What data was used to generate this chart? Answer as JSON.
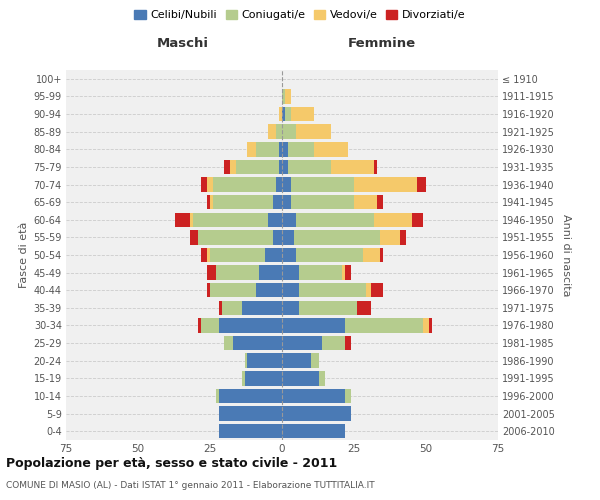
{
  "age_groups": [
    "0-4",
    "5-9",
    "10-14",
    "15-19",
    "20-24",
    "25-29",
    "30-34",
    "35-39",
    "40-44",
    "45-49",
    "50-54",
    "55-59",
    "60-64",
    "65-69",
    "70-74",
    "75-79",
    "80-84",
    "85-89",
    "90-94",
    "95-99",
    "100+"
  ],
  "birth_years": [
    "2006-2010",
    "2001-2005",
    "1996-2000",
    "1991-1995",
    "1986-1990",
    "1981-1985",
    "1976-1980",
    "1971-1975",
    "1966-1970",
    "1961-1965",
    "1956-1960",
    "1951-1955",
    "1946-1950",
    "1941-1945",
    "1936-1940",
    "1931-1935",
    "1926-1930",
    "1921-1925",
    "1916-1920",
    "1911-1915",
    "≤ 1910"
  ],
  "males": {
    "celibi": [
      22,
      22,
      22,
      13,
      12,
      17,
      22,
      14,
      9,
      8,
      6,
      3,
      5,
      3,
      2,
      1,
      1,
      0,
      0,
      0,
      0
    ],
    "coniugati": [
      0,
      0,
      1,
      1,
      1,
      3,
      6,
      7,
      16,
      15,
      19,
      26,
      26,
      21,
      22,
      15,
      8,
      2,
      0,
      0,
      0
    ],
    "vedovi": [
      0,
      0,
      0,
      0,
      0,
      0,
      0,
      0,
      0,
      0,
      1,
      0,
      1,
      1,
      2,
      2,
      3,
      3,
      1,
      0,
      0
    ],
    "divorziati": [
      0,
      0,
      0,
      0,
      0,
      0,
      1,
      1,
      1,
      3,
      2,
      3,
      5,
      1,
      2,
      2,
      0,
      0,
      0,
      0,
      0
    ]
  },
  "females": {
    "nubili": [
      22,
      24,
      22,
      13,
      10,
      14,
      22,
      6,
      6,
      6,
      5,
      4,
      5,
      3,
      3,
      2,
      2,
      0,
      1,
      0,
      0
    ],
    "coniugate": [
      0,
      0,
      2,
      2,
      3,
      8,
      27,
      20,
      23,
      15,
      23,
      30,
      27,
      22,
      22,
      15,
      9,
      5,
      2,
      1,
      0
    ],
    "vedove": [
      0,
      0,
      0,
      0,
      0,
      0,
      2,
      0,
      2,
      1,
      6,
      7,
      13,
      8,
      22,
      15,
      12,
      12,
      8,
      2,
      0
    ],
    "divorziate": [
      0,
      0,
      0,
      0,
      0,
      2,
      1,
      5,
      4,
      2,
      1,
      2,
      4,
      2,
      3,
      1,
      0,
      0,
      0,
      0,
      0
    ]
  },
  "colors": {
    "celibi": "#4a7ab5",
    "coniugati": "#b5cc8e",
    "vedovi": "#f5c96a",
    "divorziati": "#cc2222"
  },
  "xlim": 75,
  "xlabel_left": "Maschi",
  "xlabel_right": "Femmine",
  "ylabel_left": "Fasce di età",
  "ylabel_right": "Anni di nascita",
  "title": "Popolazione per età, sesso e stato civile - 2011",
  "subtitle": "COMUNE DI MASIO (AL) - Dati ISTAT 1° gennaio 2011 - Elaborazione TUTTITALIA.IT",
  "legend_labels": [
    "Celibi/Nubili",
    "Coniugati/e",
    "Vedovi/e",
    "Divorziati/e"
  ],
  "background_color": "#f0f0f0",
  "bar_height": 0.82
}
